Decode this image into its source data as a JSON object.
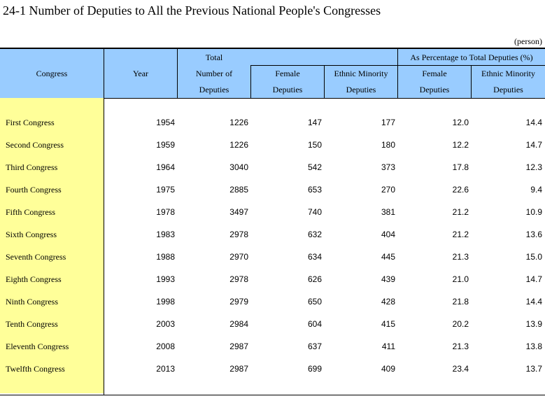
{
  "title": "24-1  Number of Deputies to All the Previous National People's Congresses",
  "unit": "(person)",
  "headers": {
    "congress": "Congress",
    "year": "Year",
    "total_line1": "Total",
    "total_line2": "Number of",
    "total_line3": "Deputies",
    "female_line1": "Female",
    "female_line2": "Deputies",
    "ethnic_line1": "Ethnic Minority",
    "ethnic_line2": "Deputies",
    "pct_group": "As Percentage to Total Deputies (%)",
    "pct_female_line1": "Female",
    "pct_female_line2": "Deputies",
    "pct_ethnic_line1": "Ethnic Minority",
    "pct_ethnic_line2": "Deputies"
  },
  "rows": [
    {
      "congress": "First Congress",
      "year": "1954",
      "total": "1226",
      "female": "147",
      "ethnic": "177",
      "pct_female": "12.0",
      "pct_ethnic": "14.4"
    },
    {
      "congress": "Second Congress",
      "year": "1959",
      "total": "1226",
      "female": "150",
      "ethnic": "180",
      "pct_female": "12.2",
      "pct_ethnic": "14.7"
    },
    {
      "congress": "Third Congress",
      "year": "1964",
      "total": "3040",
      "female": "542",
      "ethnic": "373",
      "pct_female": "17.8",
      "pct_ethnic": "12.3"
    },
    {
      "congress": "Fourth Congress",
      "year": "1975",
      "total": "2885",
      "female": "653",
      "ethnic": "270",
      "pct_female": "22.6",
      "pct_ethnic": "9.4"
    },
    {
      "congress": "Fifth Congress",
      "year": "1978",
      "total": "3497",
      "female": "740",
      "ethnic": "381",
      "pct_female": "21.2",
      "pct_ethnic": "10.9"
    },
    {
      "congress": "Sixth Congress",
      "year": "1983",
      "total": "2978",
      "female": "632",
      "ethnic": "404",
      "pct_female": "21.2",
      "pct_ethnic": "13.6"
    },
    {
      "congress": "Seventh Congress",
      "year": "1988",
      "total": "2970",
      "female": "634",
      "ethnic": "445",
      "pct_female": "21.3",
      "pct_ethnic": "15.0"
    },
    {
      "congress": "Eighth Congress",
      "year": "1993",
      "total": "2978",
      "female": "626",
      "ethnic": "439",
      "pct_female": "21.0",
      "pct_ethnic": "14.7"
    },
    {
      "congress": "Ninth Congress",
      "year": "1998",
      "total": "2979",
      "female": "650",
      "ethnic": "428",
      "pct_female": "21.8",
      "pct_ethnic": "14.4"
    },
    {
      "congress": "Tenth Congress",
      "year": "2003",
      "total": "2984",
      "female": "604",
      "ethnic": "415",
      "pct_female": "20.2",
      "pct_ethnic": "13.9"
    },
    {
      "congress": "Eleventh Congress",
      "year": "2008",
      "total": "2987",
      "female": "637",
      "ethnic": "411",
      "pct_female": "21.3",
      "pct_ethnic": "13.8"
    },
    {
      "congress": "Twelfth Congress",
      "year": "2013",
      "total": "2987",
      "female": "699",
      "ethnic": "409",
      "pct_female": "23.4",
      "pct_ethnic": "13.7"
    }
  ]
}
